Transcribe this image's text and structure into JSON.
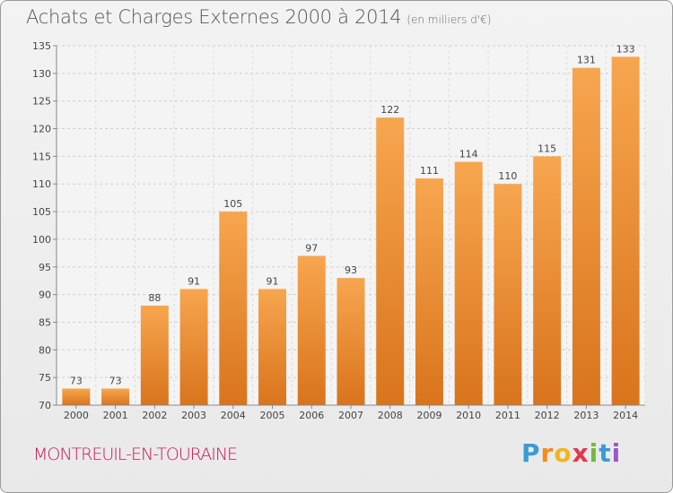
{
  "header": {
    "title": "Achats et Charges Externes 2000 à 2014",
    "subtitle": "(en milliers d'€)"
  },
  "footer": {
    "commune": "MONTREUIL-EN-TOURAINE",
    "logo_letters": [
      "P",
      "r",
      "o",
      "x",
      "i",
      "t",
      "i"
    ]
  },
  "colors": {
    "bar_top": "#f7a64f",
    "bar_bottom": "#d9741c",
    "commune": "#c8145a"
  },
  "chart_data": {
    "type": "bar",
    "title": "Achats et Charges Externes 2000 à 2014",
    "subtitle": "(en milliers d'€)",
    "categories": [
      "2000",
      "2001",
      "2002",
      "2003",
      "2004",
      "2005",
      "2006",
      "2007",
      "2008",
      "2009",
      "2010",
      "2011",
      "2012",
      "2013",
      "2014"
    ],
    "values": [
      73,
      73,
      88,
      91,
      105,
      91,
      97,
      93,
      122,
      111,
      114,
      110,
      115,
      131,
      133
    ],
    "ylim": [
      70,
      135
    ],
    "yticks": [
      70,
      75,
      80,
      85,
      90,
      95,
      100,
      105,
      110,
      115,
      120,
      125,
      130,
      135
    ],
    "grid": true,
    "xlabel": "",
    "ylabel": ""
  }
}
